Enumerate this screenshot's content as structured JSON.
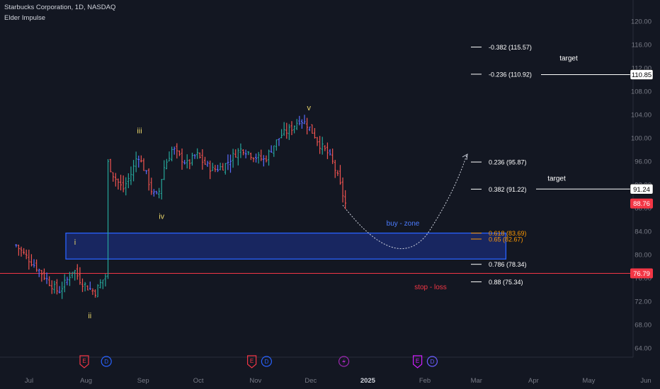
{
  "header": {
    "symbol_line": "Starbucks Corporation, 1D, NASDAQ",
    "indicator": "Elder Impulse"
  },
  "colors": {
    "background": "#131722",
    "up": "#26a69a",
    "down": "#ef5350",
    "neutral": "#5b6cff",
    "wave_label": "#e8d46a",
    "zone_border": "#2962ff",
    "zone_fill": "#1a2a6e",
    "stop_line": "#f23645",
    "axis_text": "#787b86",
    "white": "#ffffff",
    "orange": "#ff9800"
  },
  "chart_data": {
    "type": "candlestick",
    "title": "Starbucks Corporation, 1D, NASDAQ",
    "y_axis": {
      "ticks": [
        "120.00",
        "116.00",
        "112.00",
        "108.00",
        "104.00",
        "100.00",
        "96.00",
        "92.00",
        "88.00",
        "84.00",
        "80.00",
        "76.00",
        "72.00",
        "68.00",
        "64.00"
      ],
      "ylim": [
        61,
        122
      ],
      "position": "right"
    },
    "x_axis": {
      "ticks": [
        "Jul",
        "Aug",
        "Sep",
        "Oct",
        "Nov",
        "Dec",
        "2025",
        "Feb",
        "Mar",
        "Apr",
        "May",
        "Jun"
      ],
      "bold_ticks": [
        "2025"
      ]
    },
    "grid": false,
    "price_path": [
      [
        "2024-06-24",
        81.6
      ],
      [
        "2024-06-28",
        80.2
      ],
      [
        "2024-07-03",
        78.5
      ],
      [
        "2024-07-08",
        76.8
      ],
      [
        "2024-07-12",
        75.2
      ],
      [
        "2024-07-17",
        73.6
      ],
      [
        "2024-07-22",
        75.8
      ],
      [
        "2024-07-25",
        77.6
      ],
      [
        "2024-07-29",
        75.5
      ],
      [
        "2024-08-02",
        74.3
      ],
      [
        "2024-08-06",
        73.6
      ],
      [
        "2024-08-09",
        75.2
      ],
      [
        "2024-08-12",
        76.5
      ],
      [
        "2024-08-13",
        95.7
      ],
      [
        "2024-08-16",
        93.5
      ],
      [
        "2024-08-21",
        91.2
      ],
      [
        "2024-08-26",
        94.2
      ],
      [
        "2024-08-29",
        97.3
      ],
      [
        "2024-09-03",
        93.5
      ],
      [
        "2024-09-06",
        90.5
      ],
      [
        "2024-09-09",
        89.9
      ],
      [
        "2024-09-12",
        94.7
      ],
      [
        "2024-09-17",
        98.3
      ],
      [
        "2024-09-20",
        97.0
      ],
      [
        "2024-09-25",
        95.5
      ],
      [
        "2024-09-30",
        97.2
      ],
      [
        "2024-10-04",
        95.7
      ],
      [
        "2024-10-09",
        94.5
      ],
      [
        "2024-10-15",
        95.2
      ],
      [
        "2024-10-21",
        97.3
      ],
      [
        "2024-10-25",
        98.2
      ],
      [
        "2024-10-31",
        96.9
      ],
      [
        "2024-11-06",
        96.2
      ],
      [
        "2024-11-11",
        98.8
      ],
      [
        "2024-11-15",
        100.5
      ],
      [
        "2024-11-20",
        101.5
      ],
      [
        "2024-11-25",
        103.2
      ],
      [
        "2024-11-29",
        102.3
      ],
      [
        "2024-12-03",
        100.5
      ],
      [
        "2024-12-06",
        98.8
      ],
      [
        "2024-12-10",
        97.5
      ],
      [
        "2024-12-13",
        95.7
      ],
      [
        "2024-12-16",
        93.0
      ],
      [
        "2024-12-19",
        89.6
      ],
      [
        "2024-12-20",
        88.76
      ]
    ],
    "last_price": "88.76",
    "wave_labels": [
      {
        "text": "i",
        "date": "2024-07-26",
        "price": 82.2
      },
      {
        "text": "ii",
        "date": "2024-08-03",
        "price": 69.6
      },
      {
        "text": "iii",
        "date": "2024-08-30",
        "price": 101.3
      },
      {
        "text": "iv",
        "date": "2024-09-11",
        "price": 86.6
      },
      {
        "text": "v",
        "date": "2024-11-30",
        "price": 105.2
      }
    ],
    "buy_zone": {
      "label": "buy - zone",
      "from": "2024-07-21",
      "to": "2025-03-17",
      "high": 83.69,
      "low": 79.24
    },
    "fib_levels": [
      {
        "label": "-0.382 (115.57)",
        "price": 115.57,
        "color": "#ffffff"
      },
      {
        "label": "-0.236 (110.92)",
        "price": 110.92,
        "color": "#ffffff"
      },
      {
        "label": "0.236 (95.87)",
        "price": 95.87,
        "color": "#ffffff"
      },
      {
        "label": "0.382 (91.22)",
        "price": 91.22,
        "color": "#ffffff"
      },
      {
        "label": "0.618 (83.69)",
        "price": 83.69,
        "color": "#ff9800"
      },
      {
        "label": "0.65 (82.67)",
        "price": 82.67,
        "color": "#ff9800"
      },
      {
        "label": "0.786 (78.34)",
        "price": 78.34,
        "color": "#ffffff"
      },
      {
        "label": "0.88 (75.34)",
        "price": 75.34,
        "color": "#ffffff"
      }
    ],
    "targets": [
      {
        "label": "target",
        "price": 110.85,
        "badge": "110.85"
      },
      {
        "label": "target",
        "price": 91.24,
        "badge": "91.24"
      }
    ],
    "stop_loss": {
      "label": "stop - loss",
      "price": 76.79,
      "badge": "76.79"
    },
    "events": [
      {
        "date": "2024-07-31",
        "type": "E"
      },
      {
        "date": "2024-08-12",
        "type": "D"
      },
      {
        "date": "2024-10-30",
        "type": "E"
      },
      {
        "date": "2024-11-07",
        "type": "D"
      },
      {
        "date": "2024-12-19",
        "type": "S"
      },
      {
        "date": "2025-01-28",
        "type": "E"
      },
      {
        "date": "2025-02-05",
        "type": "D"
      }
    ]
  }
}
